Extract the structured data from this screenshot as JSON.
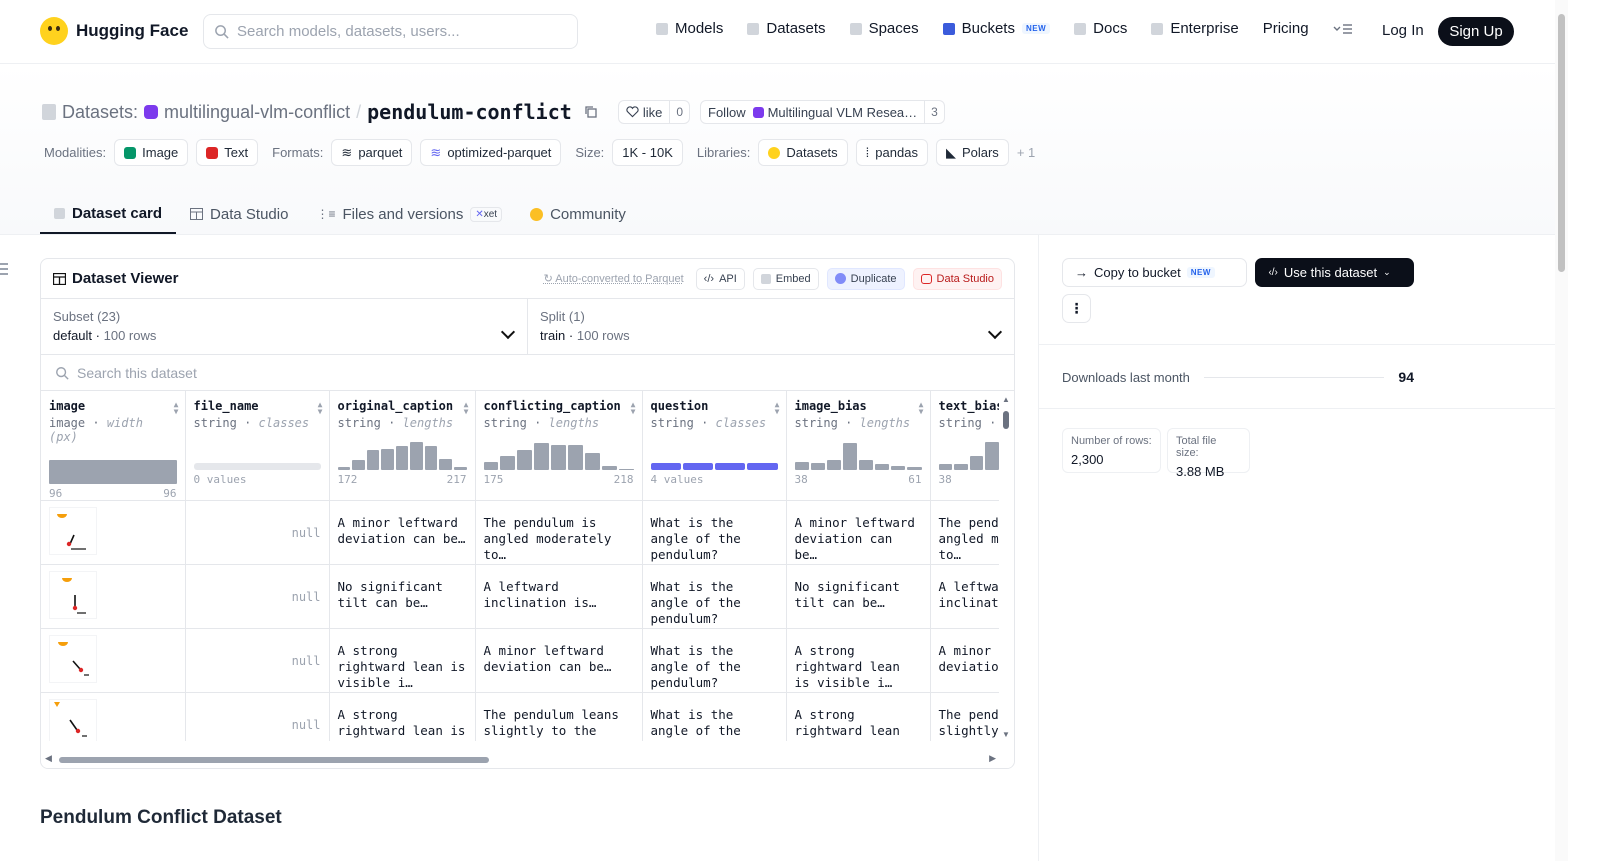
{
  "nav": {
    "brand": "Hugging Face",
    "search_placeholder": "Search models, datasets, users...",
    "links": [
      "Models",
      "Datasets",
      "Spaces",
      "Buckets",
      "Docs",
      "Enterprise",
      "Pricing"
    ],
    "buckets_badge": "NEW",
    "login": "Log In",
    "signup": "Sign Up"
  },
  "header": {
    "section": "Datasets:",
    "org": "multilingual-vlm-conflict",
    "sep": "/",
    "name": "pendulum-conflict",
    "like_label": "like",
    "like_count": "0",
    "follow_label": "Follow",
    "follow_org": "Multilingual VLM Resea…",
    "follow_count": "3"
  },
  "meta": {
    "modalities_label": "Modalities:",
    "modalities": [
      "Image",
      "Text"
    ],
    "formats_label": "Formats:",
    "formats": [
      "parquet",
      "optimized-parquet"
    ],
    "size_label": "Size:",
    "size": "1K - 10K",
    "libraries_label": "Libraries:",
    "libraries": [
      "Datasets",
      "pandas",
      "Polars"
    ],
    "more": "+ 1"
  },
  "tabs": [
    "Dataset card",
    "Data Studio",
    "Files and versions",
    "Community"
  ],
  "xet_badge": "xet",
  "viewer": {
    "title": "Dataset Viewer",
    "auto": "Auto-converted to Parquet",
    "api": "API",
    "embed": "Embed",
    "duplicate": "Duplicate",
    "studio": "Data Studio",
    "subset_label": "Subset (23)",
    "subset_value": "default",
    "subset_rows": "100 rows",
    "split_label": "Split (1)",
    "split_value": "train",
    "split_rows": "100 rows",
    "search_placeholder": "Search this dataset",
    "columns": [
      {
        "name": "image",
        "type": "image",
        "stat": "width (px)",
        "min": "96",
        "max": "96"
      },
      {
        "name": "file_name",
        "type": "string",
        "stat": "classes",
        "min": "0 values",
        "max": ""
      },
      {
        "name": "original_caption",
        "type": "string",
        "stat": "lengths",
        "min": "172",
        "max": "217"
      },
      {
        "name": "conflicting_caption",
        "type": "string",
        "stat": "lengths",
        "min": "175",
        "max": "218"
      },
      {
        "name": "question",
        "type": "string",
        "stat": "classes",
        "min": "4 values",
        "max": ""
      },
      {
        "name": "image_bias",
        "type": "string",
        "stat": "lengths",
        "min": "38",
        "max": "61"
      },
      {
        "name": "text_bias",
        "type": "string",
        "stat": "lengths",
        "min": "38",
        "max": ""
      }
    ],
    "histograms": {
      "original_caption": [
        0.1,
        0.35,
        0.7,
        0.75,
        0.85,
        1.0,
        0.85,
        0.4,
        0.1
      ],
      "conflicting_caption": [
        0.3,
        0.5,
        0.7,
        0.95,
        0.9,
        0.9,
        0.6,
        0.15,
        0.05
      ],
      "image_bias": [
        0.3,
        0.25,
        0.35,
        0.95,
        0.35,
        0.2,
        0.15,
        0.1
      ],
      "text_bias": [
        0.2,
        0.2,
        0.5,
        1.0
      ]
    },
    "rows": [
      {
        "file_name": "null",
        "original_caption": "A minor leftward deviation can be…",
        "conflicting_caption": "The pendulum is angled moderately to…",
        "question": "What is the angle of the pendulum?",
        "image_bias": "A minor leftward deviation can be…",
        "text_bias": "The pendulum is angled moderately to…"
      },
      {
        "file_name": "null",
        "original_caption": "No significant tilt can be…",
        "conflicting_caption": "A leftward inclination is…",
        "question": "What is the angle of the pendulum?",
        "image_bias": "No significant tilt can be…",
        "text_bias": "A leftward inclination is…"
      },
      {
        "file_name": "null",
        "original_caption": "A strong rightward lean is visible i…",
        "conflicting_caption": "A minor leftward deviation can be…",
        "question": "What is the angle of the pendulum?",
        "image_bias": "A strong rightward lean is visible i…",
        "text_bias": "A minor leftward deviation can be…"
      },
      {
        "file_name": "null",
        "original_caption": "A strong rightward lean is visible i…",
        "conflicting_caption": "The pendulum leans slightly to the left…",
        "question": "What is the angle of the pendulum?",
        "image_bias": "A strong rightward lean is visible i…",
        "text_bias": "The pendulum leans slightly to the left…"
      }
    ]
  },
  "sidebar": {
    "copy_bucket": "Copy to bucket",
    "copy_badge": "NEW",
    "use_dataset": "Use this dataset",
    "downloads_label": "Downloads last month",
    "downloads_value": "94",
    "rows_label": "Number of rows:",
    "rows_value": "2,300",
    "size_label": "Total file size:",
    "size_value": "3.88 MB"
  },
  "section_title": "Pendulum Conflict Dataset",
  "colors": {
    "accent": "#6366f1",
    "dark": "#0b0f19",
    "brand": "#ffd21e"
  }
}
